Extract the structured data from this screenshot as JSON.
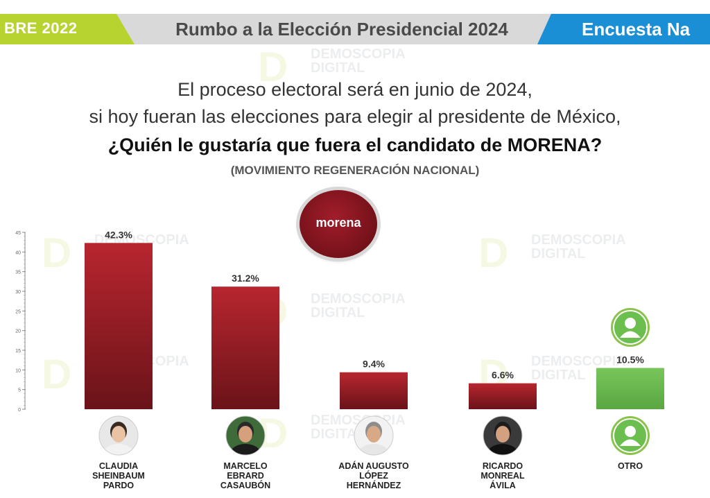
{
  "header": {
    "left_text": "BRE 2022",
    "title": "Rumbo a la Elección Presidencial 2024",
    "right_text": "Encuesta Na"
  },
  "watermark": {
    "text": "DEMOSCOPIA DIGITAL"
  },
  "question": {
    "line1": "El proceso electoral será en junio de 2024,",
    "line2": "si hoy fueran las elecciones para elegir al presidente de México,",
    "line3": "¿Quién le gustaría que fuera el candidato de MORENA?",
    "line4": "(MOVIMIENTO REGENERACIÓN NACIONAL)"
  },
  "party_logo": {
    "label": "morena",
    "color": "#8b1520"
  },
  "colors": {
    "bar_red": "#a5222b",
    "bar_green": "#6cbf4f",
    "header_green": "#b7d330",
    "header_blue": "#1a8fd6"
  },
  "chart_data": {
    "type": "bar",
    "categories": [
      "CLAUDIA SHEINBAUM PARDO",
      "MARCELO EBRARD CASAUBÓN",
      "ADÁN AUGUSTO LÓPEZ HERNÁNDEZ",
      "RICARDO MONREAL ÁVILA",
      "OTRO"
    ],
    "category_lines": [
      [
        "CLAUDIA",
        "SHEINBAUM",
        "PARDO"
      ],
      [
        "MARCELO",
        "EBRARD",
        "CASAUBÓN"
      ],
      [
        "ADÁN AUGUSTO",
        "LÓPEZ",
        "HERNÁNDEZ"
      ],
      [
        "RICARDO",
        "MONREAL",
        "ÁVILA"
      ],
      [
        "OTRO"
      ]
    ],
    "values": [
      42.3,
      31.2,
      9.4,
      6.6,
      10.5
    ],
    "labels": [
      "42.3%",
      "31.2%",
      "9.4%",
      "6.6%",
      "10.5%"
    ],
    "bar_colors": [
      "#a5222b",
      "#a5222b",
      "#a5222b",
      "#a5222b",
      "#6cbf4f"
    ],
    "ylim": [
      0,
      45
    ],
    "yticks": [
      0,
      5,
      10,
      15,
      20,
      25,
      30,
      35,
      40,
      45
    ],
    "title": "",
    "xlabel": "",
    "ylabel": ""
  }
}
